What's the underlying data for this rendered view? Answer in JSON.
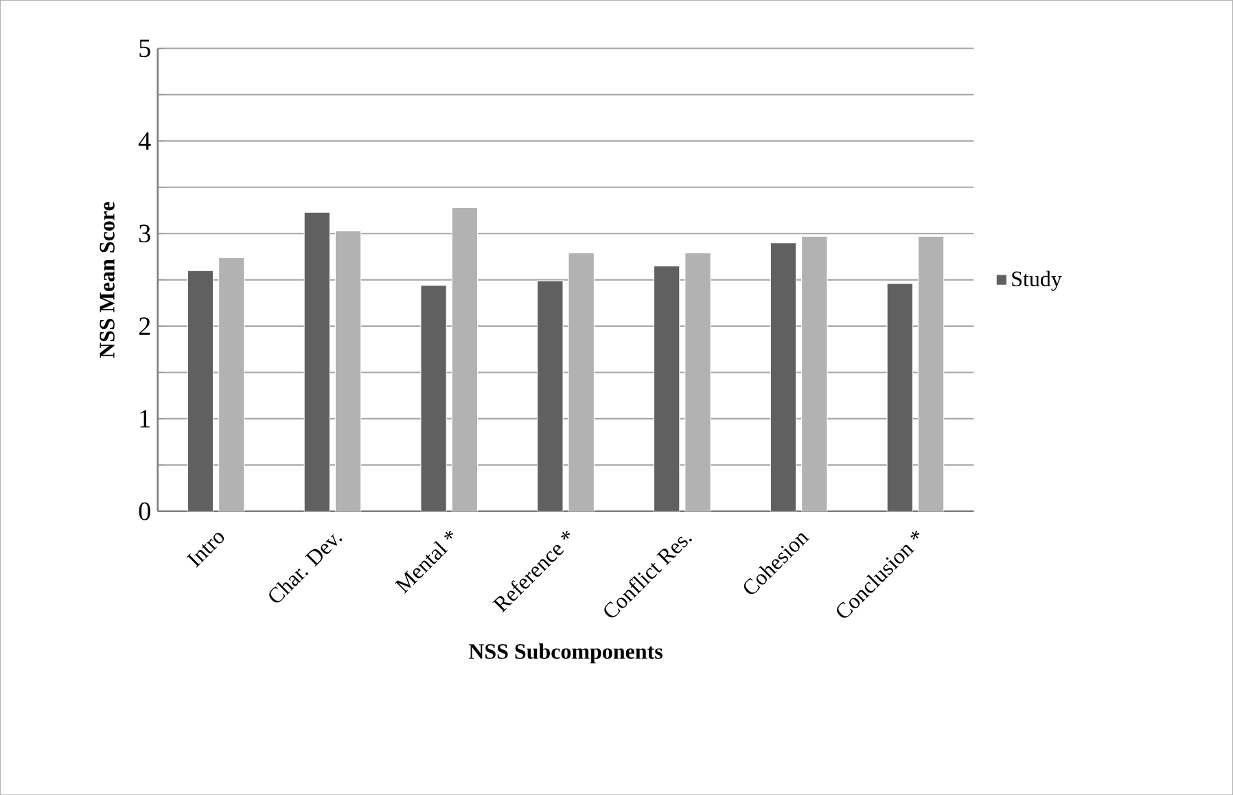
{
  "chart_data": {
    "type": "bar",
    "xlabel": "NSS Subcomponents",
    "ylabel": "NSS Mean Score",
    "categories": [
      "Intro",
      "Char. Dev.",
      "Mental *",
      "Reference *",
      "Conflict Res.",
      "Cohesion",
      "Conclusion *"
    ],
    "series": [
      {
        "name": "Study",
        "color": "#606060",
        "values": [
          2.6,
          3.23,
          2.44,
          2.49,
          2.65,
          2.9,
          2.46
        ]
      },
      {
        "color": "#b2b2b2",
        "values": [
          2.74,
          3.03,
          3.28,
          2.79,
          2.79,
          2.97,
          2.97
        ]
      }
    ],
    "ylim": [
      0,
      5
    ],
    "yticks": [
      0,
      {
        "value": 0.5,
        "label": null
      },
      1,
      {
        "value": 1.5,
        "label": null
      },
      2,
      {
        "value": 2.5,
        "label": null
      },
      3,
      {
        "value": 3.5,
        "label": null
      },
      4,
      {
        "value": 4.5,
        "label": null
      },
      5
    ],
    "grid": "y",
    "legend": "right"
  }
}
